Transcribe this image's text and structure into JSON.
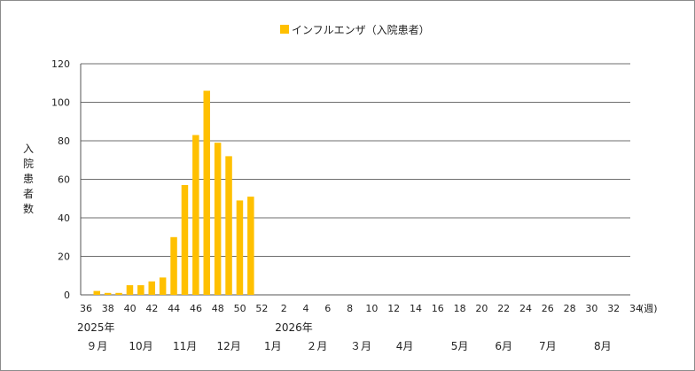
{
  "chart_data": {
    "type": "bar",
    "legend": {
      "label": "インフルエンザ（入院患者）",
      "position": "top-center"
    },
    "ylabel": "入院患者数",
    "xunit": "(週)",
    "ylim": [
      0,
      120
    ],
    "yticks": [
      0,
      20,
      40,
      60,
      80,
      100,
      120
    ],
    "grid": true,
    "color": "#FFC000",
    "weeks": [
      "36",
      "37",
      "38",
      "39",
      "40",
      "41",
      "42",
      "43",
      "44",
      "45",
      "46",
      "47",
      "48",
      "49",
      "50",
      "51",
      "52",
      "1",
      "2",
      "3",
      "4",
      "5",
      "6",
      "7",
      "8",
      "9",
      "10",
      "11",
      "12",
      "13",
      "14",
      "15",
      "16",
      "17",
      "18",
      "19",
      "20",
      "21",
      "22",
      "23",
      "24",
      "25",
      "26",
      "27",
      "28",
      "29",
      "30",
      "31",
      "32",
      "33",
      "34"
    ],
    "week_labels": [
      "36",
      "38",
      "40",
      "42",
      "44",
      "46",
      "48",
      "50",
      "52",
      "2",
      "4",
      "6",
      "8",
      "10",
      "12",
      "14",
      "16",
      "18",
      "20",
      "22",
      "24",
      "26",
      "28",
      "30",
      "32",
      "34"
    ],
    "series": [
      {
        "name": "インフルエンザ（入院患者）",
        "values": [
          2,
          1,
          1,
          5,
          5,
          7,
          9,
          30,
          57,
          83,
          106,
          79,
          72,
          49,
          51
        ]
      }
    ],
    "year_labels": [
      {
        "week": "36",
        "text": "2025年"
      },
      {
        "week": "2",
        "text": "2026年"
      }
    ],
    "month_labels": [
      {
        "week": "37",
        "text": "９月"
      },
      {
        "week": "41",
        "text": "10月"
      },
      {
        "week": "45",
        "text": "11月"
      },
      {
        "week": "49",
        "text": "12月"
      },
      {
        "week": "1",
        "text": "1月"
      },
      {
        "week": "5",
        "text": "２月"
      },
      {
        "week": "9",
        "text": "３月"
      },
      {
        "week": "13",
        "text": "4月"
      },
      {
        "week": "18",
        "text": "5月"
      },
      {
        "week": "22",
        "text": "6月"
      },
      {
        "week": "26",
        "text": "7月"
      },
      {
        "week": "31",
        "text": "8月"
      }
    ]
  }
}
